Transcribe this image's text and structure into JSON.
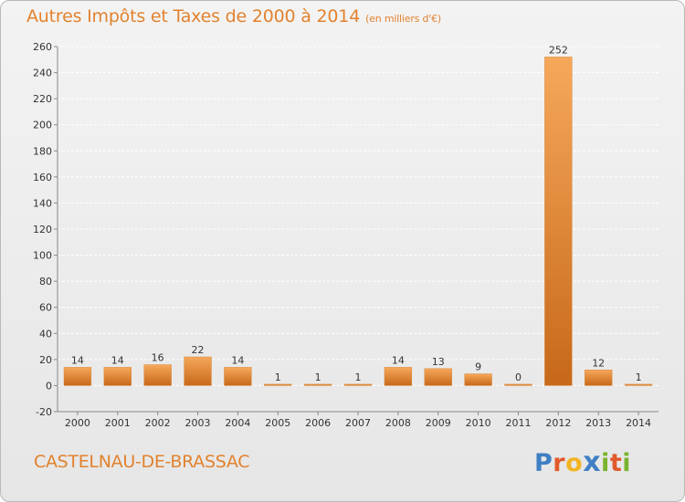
{
  "header": {
    "title": "Autres Impôts et Taxes de 2000 à 2014",
    "unit": "(en milliers d'€)"
  },
  "footer": {
    "commune": "CASTELNAU-DE-BRASSAC",
    "logo_text": "Proxiti",
    "logo_colors": [
      "#3f7fc4",
      "#e05a2b",
      "#f1b423",
      "#3f7fc4",
      "#79b42f",
      "#e05a2b",
      "#79b42f"
    ]
  },
  "colors": {
    "bar_light": "#f6a85a",
    "bar_dark": "#c7681a",
    "title": "#e2822e",
    "grid": "#ffffff",
    "axis_text": "#333333"
  },
  "chart_data": {
    "type": "bar",
    "categories": [
      "2000",
      "2001",
      "2002",
      "2003",
      "2004",
      "2005",
      "2006",
      "2007",
      "2008",
      "2009",
      "2010",
      "2011",
      "2012",
      "2013",
      "2014"
    ],
    "values": [
      14,
      14,
      16,
      22,
      14,
      1,
      1,
      1,
      14,
      13,
      9,
      0,
      252,
      12,
      1
    ],
    "labels": [
      "14",
      "14",
      "16",
      "22",
      "14",
      "1",
      "1",
      "1",
      "14",
      "13",
      "9",
      "0",
      "252",
      "12",
      "1"
    ],
    "ylim": [
      -20,
      260
    ],
    "yticks": [
      -20,
      0,
      20,
      40,
      60,
      80,
      100,
      120,
      140,
      160,
      180,
      200,
      220,
      240,
      260
    ],
    "grid": true,
    "xlabel": "",
    "ylabel": ""
  }
}
